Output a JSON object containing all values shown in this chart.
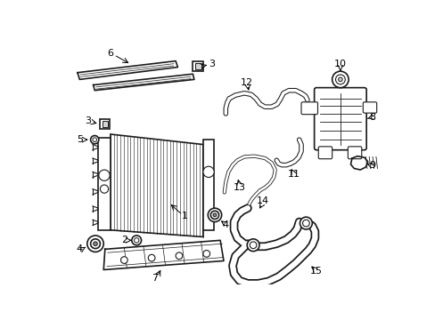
{
  "background_color": "#ffffff",
  "line_color": "#1a1a1a",
  "fig_w": 4.89,
  "fig_h": 3.6,
  "dpi": 100
}
